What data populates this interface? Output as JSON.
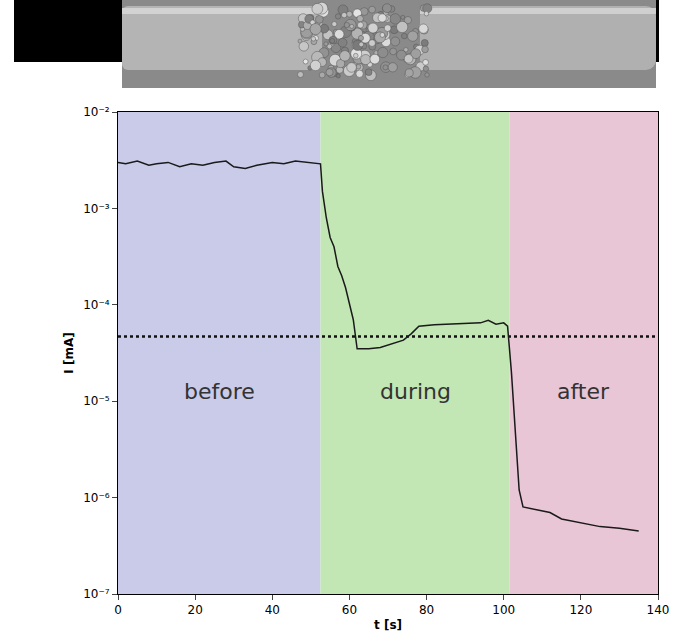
{
  "chart_data": {
    "type": "line",
    "x_label": "t [s]",
    "y_label": "I [mA]",
    "log": "y",
    "grid": false,
    "color": "#1a1a1a",
    "x": [
      0,
      2,
      5,
      8,
      10,
      13,
      16,
      19,
      22,
      25,
      28,
      30,
      33,
      36,
      40,
      43,
      46,
      50,
      52.5,
      53,
      54,
      55,
      56,
      57,
      58,
      59,
      60,
      61,
      62,
      65,
      68,
      70,
      72,
      74,
      76,
      78,
      82,
      86,
      90,
      94,
      96,
      98,
      100,
      101,
      102,
      103,
      104,
      105,
      108,
      112,
      115,
      120,
      125,
      130,
      135
    ],
    "values": [
      0.003,
      0.0029,
      0.0031,
      0.0028,
      0.0029,
      0.003,
      0.0027,
      0.0029,
      0.0028,
      0.003,
      0.0031,
      0.0027,
      0.0026,
      0.0028,
      0.003,
      0.0029,
      0.0031,
      0.003,
      0.0029,
      0.0015,
      0.0008,
      0.0005,
      0.0004,
      0.00025,
      0.0002,
      0.00015,
      0.0001,
      7e-05,
      3.5e-05,
      3.5e-05,
      3.6e-05,
      3.8e-05,
      4e-05,
      4.3e-05,
      5e-05,
      6e-05,
      6.2e-05,
      6.3e-05,
      6.4e-05,
      6.5e-05,
      6.9e-05,
      6.3e-05,
      6.5e-05,
      6e-05,
      2e-05,
      5e-06,
      1.2e-06,
      8e-07,
      7.5e-07,
      7e-07,
      6e-07,
      5.5e-07,
      5e-07,
      4.8e-07,
      4.5e-07
    ],
    "threshold": 4.7e-05,
    "regions": [
      {
        "label": "before",
        "start": 0,
        "end": 52.5,
        "color": "#c9cbe8"
      },
      {
        "label": "during",
        "start": 52.5,
        "end": 101.5,
        "color": "#c2e6b4"
      },
      {
        "label": "after",
        "start": 101.5,
        "end": 140,
        "color": "#e8c6d6"
      }
    ],
    "xlim": [
      0,
      140
    ],
    "xticks": [
      0,
      20,
      40,
      60,
      80,
      100,
      120,
      140
    ],
    "ylim": [
      1e-07,
      0.01
    ],
    "yticks": [
      {
        "value": 1e-07,
        "label": "10⁻⁷"
      },
      {
        "value": 1e-06,
        "label": "10⁻⁶"
      },
      {
        "value": 1e-05,
        "label": "10⁻⁵"
      },
      {
        "value": 0.0001,
        "label": "10⁻⁴"
      },
      {
        "value": 0.001,
        "label": "10⁻³"
      },
      {
        "value": 0.01,
        "label": "10⁻²"
      }
    ]
  }
}
